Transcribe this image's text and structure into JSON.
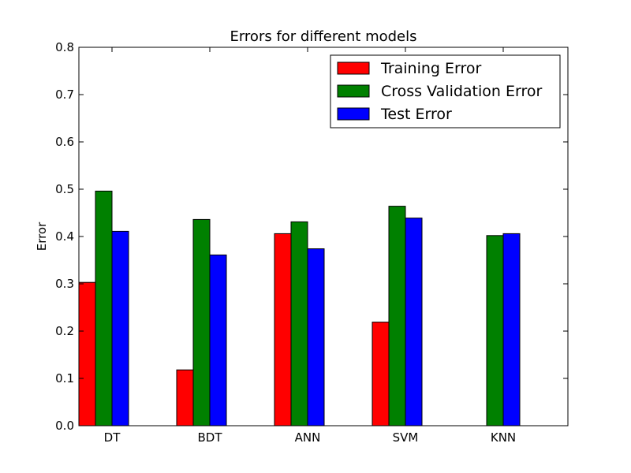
{
  "chart_data": {
    "type": "bar",
    "title": "Errors for different models",
    "xlabel": "",
    "ylabel": "Error",
    "categories": [
      "DT",
      "BDT",
      "ANN",
      "SVM",
      "KNN"
    ],
    "ylim": [
      0,
      0.8
    ],
    "yticks": [
      "0.0",
      "0.1",
      "0.2",
      "0.3",
      "0.4",
      "0.5",
      "0.6",
      "0.7",
      "0.8"
    ],
    "grid": false,
    "legend_position": "top-right",
    "series": [
      {
        "name": "Training Error",
        "color": "#ff0000",
        "values": [
          0.303,
          0.118,
          0.406,
          0.219,
          0.0
        ]
      },
      {
        "name": "Cross Validation Error",
        "color": "#008000",
        "values": [
          0.496,
          0.436,
          0.431,
          0.464,
          0.402
        ]
      },
      {
        "name": "Test Error",
        "color": "#0000ff",
        "values": [
          0.411,
          0.361,
          0.374,
          0.439,
          0.406
        ]
      }
    ]
  }
}
